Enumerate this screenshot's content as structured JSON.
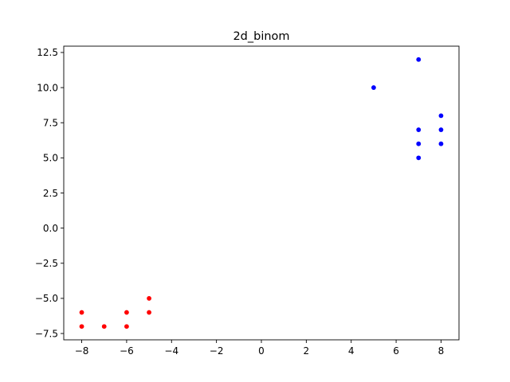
{
  "chart_data": {
    "type": "scatter",
    "title": "2d_binom",
    "xlabel": "",
    "ylabel": "",
    "xlim": [
      -8.8,
      8.8
    ],
    "ylim": [
      -7.95,
      12.95
    ],
    "xticks": [
      -8,
      -6,
      -4,
      -2,
      0,
      2,
      4,
      6,
      8
    ],
    "xtick_labels": [
      "−8",
      "−6",
      "−4",
      "−2",
      "0",
      "2",
      "4",
      "6",
      "8"
    ],
    "yticks": [
      -7.5,
      -5.0,
      -2.5,
      0.0,
      2.5,
      5.0,
      7.5,
      10.0,
      12.5
    ],
    "ytick_labels": [
      "−7.5",
      "−5.0",
      "−2.5",
      "0.0",
      "2.5",
      "5.0",
      "7.5",
      "10.0",
      "12.5"
    ],
    "grid": false,
    "series": [
      {
        "color": "#ff0000",
        "points": [
          {
            "x": -8,
            "y": -6
          },
          {
            "x": -8,
            "y": -7
          },
          {
            "x": -7,
            "y": -7
          },
          {
            "x": -6,
            "y": -6
          },
          {
            "x": -6,
            "y": -7
          },
          {
            "x": -5,
            "y": -5
          },
          {
            "x": -5,
            "y": -6
          }
        ]
      },
      {
        "color": "#0000ff",
        "points": [
          {
            "x": 5,
            "y": 10
          },
          {
            "x": 7,
            "y": 12
          },
          {
            "x": 7,
            "y": 7
          },
          {
            "x": 7,
            "y": 6
          },
          {
            "x": 7,
            "y": 5
          },
          {
            "x": 8,
            "y": 8
          },
          {
            "x": 8,
            "y": 7
          },
          {
            "x": 8,
            "y": 6
          }
        ]
      }
    ]
  }
}
